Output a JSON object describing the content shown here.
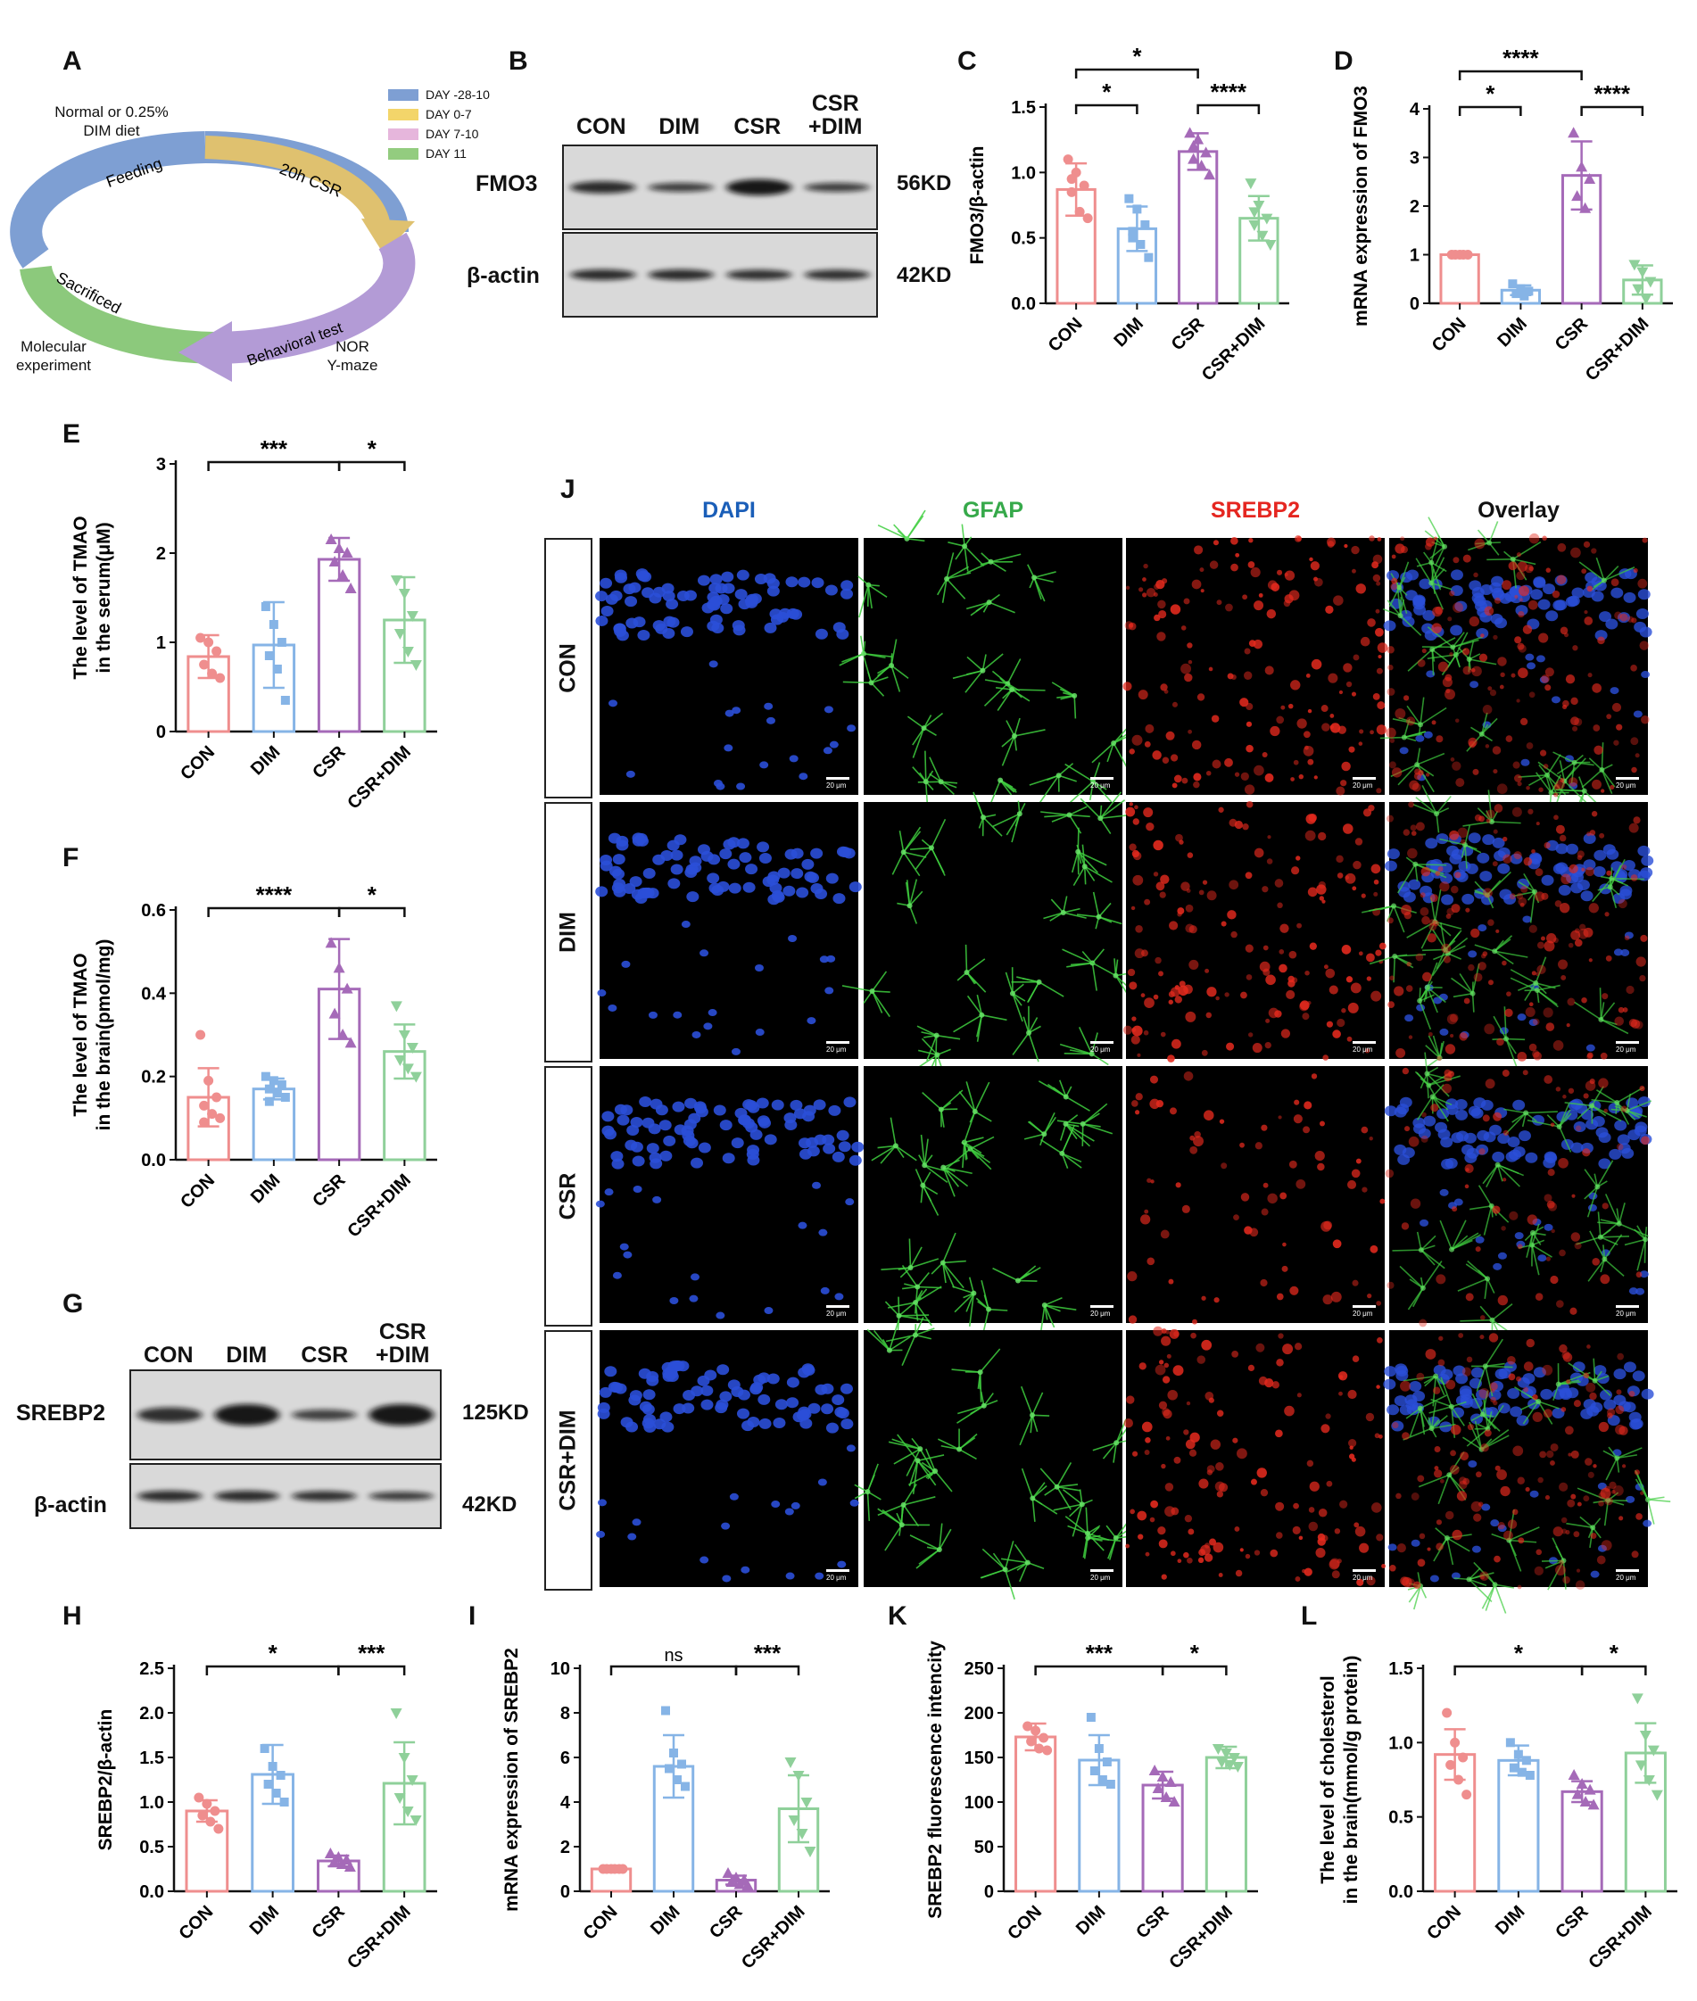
{
  "panels": {
    "A": "A",
    "B": "B",
    "C": "C",
    "D": "D",
    "E": "E",
    "F": "F",
    "G": "G",
    "H": "H",
    "I": "I",
    "J": "J",
    "K": "K",
    "L": "L"
  },
  "panelA": {
    "diet_label": "Normal or 0.25%\nDIM diet",
    "feeding": "Feeding",
    "csr": "20h CSR",
    "behavioral": "Behavioral test",
    "sacrificed": "Sacrificed",
    "molecular": "Molecular\nexperiment",
    "nor": "NOR\nY-maze",
    "legend": [
      {
        "label": "DAY -28-10",
        "color": "#7e9fd3"
      },
      {
        "label": "DAY 0-7",
        "color": "#f3d56a"
      },
      {
        "label": "DAY 7-10",
        "color": "#e6b6dc"
      },
      {
        "label": "DAY 11",
        "color": "#93cc7f"
      }
    ]
  },
  "westernB": {
    "lanes": [
      "CON",
      "DIM",
      "CSR",
      "CSR\n+DIM"
    ],
    "rows": [
      {
        "label": "FMO3",
        "kd": "56KD"
      },
      {
        "label": "β-actin",
        "kd": "42KD"
      }
    ]
  },
  "westernG": {
    "lanes": [
      "CON",
      "DIM",
      "CSR",
      "CSR\n+DIM"
    ],
    "rows": [
      {
        "label": "SREBP2",
        "kd": "125KD"
      },
      {
        "label": "β-actin",
        "kd": "42KD"
      }
    ]
  },
  "groupColors": [
    "#ef8e8e",
    "#86b4e6",
    "#a56ab8",
    "#8fd09a"
  ],
  "panelJ": {
    "channels": [
      {
        "label": "DAPI",
        "color": "#1a5eb8"
      },
      {
        "label": "GFAP",
        "color": "#36a94a"
      },
      {
        "label": "SREBP2",
        "color": "#e52620"
      },
      {
        "label": "Overlay",
        "color": "#111111"
      }
    ],
    "rows": [
      "CON",
      "DIM",
      "CSR",
      "CSR+DIM"
    ],
    "scale_bar": "20 μm"
  },
  "chart_data": [
    {
      "panel": "C",
      "type": "bar",
      "categories": [
        "CON",
        "DIM",
        "CSR",
        "CSR+DIM"
      ],
      "values": [
        0.87,
        0.57,
        1.16,
        0.65
      ],
      "errors": [
        0.2,
        0.17,
        0.14,
        0.17
      ],
      "ylabel": "FMO3/β-actin",
      "ylim": [
        0,
        1.5
      ],
      "yticks": [
        "0.0",
        "0.5",
        "1.0",
        "1.5"
      ],
      "points": [
        [
          1.1,
          1.0,
          0.9,
          0.85,
          0.7,
          0.65,
          0.95
        ],
        [
          0.8,
          0.72,
          0.6,
          0.55,
          0.45,
          0.35,
          0.5
        ],
        [
          1.3,
          1.25,
          1.15,
          1.1,
          1.05,
          0.98,
          1.2
        ],
        [
          0.92,
          0.75,
          0.65,
          0.6,
          0.52,
          0.45,
          0.7
        ]
      ],
      "sig": [
        {
          "a": 0,
          "b": 1,
          "label": "*",
          "lvl": 0
        },
        {
          "a": 2,
          "b": 3,
          "label": "****",
          "lvl": 0
        },
        {
          "a": 0,
          "b": 2,
          "label": "*",
          "lvl": 1
        }
      ]
    },
    {
      "panel": "D",
      "type": "bar",
      "categories": [
        "CON",
        "DIM",
        "CSR",
        "CSR+DIM"
      ],
      "values": [
        1.0,
        0.27,
        2.63,
        0.48
      ],
      "errors": [
        0,
        0.1,
        0.7,
        0.3
      ],
      "ylabel": "mRNA expression of FMO3",
      "ylim": [
        0,
        4
      ],
      "yticks": [
        "0",
        "1",
        "2",
        "3",
        "4"
      ],
      "points": [
        [
          1,
          1,
          1,
          1,
          1
        ],
        [
          0.4,
          0.3,
          0.25,
          0.2,
          0.15
        ],
        [
          3.5,
          2.8,
          2.55,
          2.2,
          1.95
        ],
        [
          0.8,
          0.65,
          0.45,
          0.3,
          0.1
        ]
      ],
      "sig": [
        {
          "a": 0,
          "b": 1,
          "label": "*",
          "lvl": 0
        },
        {
          "a": 2,
          "b": 3,
          "label": "****",
          "lvl": 0
        },
        {
          "a": 0,
          "b": 2,
          "label": "****",
          "lvl": 1
        }
      ]
    },
    {
      "panel": "E",
      "type": "bar",
      "categories": [
        "CON",
        "DIM",
        "CSR",
        "CSR+DIM"
      ],
      "values": [
        0.84,
        0.97,
        1.93,
        1.25
      ],
      "errors": [
        0.24,
        0.48,
        0.24,
        0.48
      ],
      "ylabel": "The level of TMAO\nin the serum(μM)",
      "ylim": [
        0,
        3
      ],
      "yticks": [
        "0",
        "1",
        "2",
        "3"
      ],
      "points": [
        [
          1.05,
          1.0,
          0.9,
          0.75,
          0.65,
          0.6
        ],
        [
          1.4,
          1.2,
          1.0,
          0.85,
          0.7,
          0.35
        ],
        [
          2.15,
          2.05,
          2.0,
          1.9,
          1.75,
          1.6
        ],
        [
          1.7,
          1.55,
          1.3,
          1.1,
          0.9,
          0.75
        ]
      ],
      "sig": [
        {
          "a": 0,
          "b": 2,
          "label": "***",
          "lvl": 0
        },
        {
          "a": 2,
          "b": 3,
          "label": "*",
          "lvl": 0
        }
      ]
    },
    {
      "panel": "F",
      "type": "bar",
      "categories": [
        "CON",
        "DIM",
        "CSR",
        "CSR+DIM"
      ],
      "values": [
        0.15,
        0.17,
        0.41,
        0.26
      ],
      "errors": [
        0.07,
        0.025,
        0.12,
        0.065
      ],
      "ylabel": "The level of TMAO\nin the brain(pmol/mg)",
      "ylim": [
        0,
        0.6
      ],
      "yticks": [
        "0.0",
        "0.2",
        "0.4",
        "0.6"
      ],
      "points": [
        [
          0.3,
          0.19,
          0.15,
          0.13,
          0.11,
          0.1,
          0.09
        ],
        [
          0.2,
          0.19,
          0.18,
          0.17,
          0.16,
          0.15,
          0.14
        ],
        [
          0.52,
          0.46,
          0.41,
          0.35,
          0.3,
          0.28
        ],
        [
          0.37,
          0.3,
          0.27,
          0.24,
          0.22,
          0.2
        ]
      ],
      "sig": [
        {
          "a": 0,
          "b": 2,
          "label": "****",
          "lvl": 0
        },
        {
          "a": 2,
          "b": 3,
          "label": "*",
          "lvl": 0
        }
      ]
    },
    {
      "panel": "H",
      "type": "bar",
      "categories": [
        "CON",
        "DIM",
        "CSR",
        "CSR+DIM"
      ],
      "values": [
        0.9,
        1.31,
        0.34,
        1.21
      ],
      "errors": [
        0.12,
        0.33,
        0.06,
        0.46
      ],
      "ylabel": "SREBP2/β-actin",
      "ylim": [
        0,
        2.5
      ],
      "yticks": [
        "0.0",
        "0.5",
        "1.0",
        "1.5",
        "2.0",
        "2.5"
      ],
      "points": [
        [
          1.05,
          0.98,
          0.9,
          0.85,
          0.78,
          0.7
        ],
        [
          1.6,
          1.4,
          1.3,
          1.2,
          1.1,
          1.0
        ],
        [
          0.42,
          0.38,
          0.35,
          0.32,
          0.3,
          0.27
        ],
        [
          2.0,
          1.5,
          1.25,
          1.05,
          0.9,
          0.8
        ]
      ],
      "sig": [
        {
          "a": 0,
          "b": 2,
          "label": "*",
          "lvl": 0
        },
        {
          "a": 2,
          "b": 3,
          "label": "***",
          "lvl": 0
        }
      ]
    },
    {
      "panel": "I",
      "type": "bar",
      "categories": [
        "CON",
        "DIM",
        "CSR",
        "CSR+DIM"
      ],
      "values": [
        1.0,
        5.6,
        0.5,
        3.7
      ],
      "errors": [
        0,
        1.4,
        0.2,
        1.5
      ],
      "ylabel": "mRNA expression of SREBP2",
      "ylim": [
        0,
        10
      ],
      "yticks": [
        "0",
        "2",
        "4",
        "6",
        "8",
        "10"
      ],
      "points": [
        [
          1,
          1,
          1,
          1,
          1,
          1
        ],
        [
          8.1,
          6.2,
          5.7,
          5.5,
          5.0,
          4.7
        ],
        [
          0.8,
          0.6,
          0.5,
          0.4,
          0.3,
          0.25
        ],
        [
          5.8,
          5.2,
          4.0,
          3.2,
          2.6,
          1.8
        ]
      ],
      "sig": [
        {
          "a": 0,
          "b": 2,
          "label": "ns",
          "lvl": 0
        },
        {
          "a": 2,
          "b": 3,
          "label": "***",
          "lvl": 0
        }
      ]
    },
    {
      "panel": "K",
      "type": "bar",
      "categories": [
        "CON",
        "DIM",
        "CSR",
        "CSR+DIM"
      ],
      "values": [
        173,
        147,
        119,
        150
      ],
      "errors": [
        15,
        28,
        15,
        12
      ],
      "ylabel": "SREBP2 fluorescence intencity",
      "ylim": [
        0,
        250
      ],
      "yticks": [
        "0",
        "50",
        "100",
        "150",
        "200",
        "250"
      ],
      "points": [
        [
          185,
          180,
          172,
          168,
          160,
          158
        ],
        [
          195,
          160,
          145,
          135,
          125,
          120
        ],
        [
          135,
          128,
          122,
          115,
          105,
          100
        ],
        [
          160,
          155,
          150,
          145,
          142,
          140
        ]
      ],
      "sig": [
        {
          "a": 0,
          "b": 2,
          "label": "***",
          "lvl": 0
        },
        {
          "a": 2,
          "b": 3,
          "label": "*",
          "lvl": 0
        }
      ]
    },
    {
      "panel": "L",
      "type": "bar",
      "categories": [
        "CON",
        "DIM",
        "CSR",
        "CSR+DIM"
      ],
      "values": [
        0.92,
        0.88,
        0.67,
        0.93
      ],
      "errors": [
        0.17,
        0.1,
        0.07,
        0.2
      ],
      "ylabel": "The level of cholesterol\nin the brain(mmol/g protein)",
      "ylim": [
        0,
        1.5
      ],
      "yticks": [
        "0.0",
        "0.5",
        "1.0",
        "1.5"
      ],
      "points": [
        [
          1.2,
          1.0,
          0.9,
          0.85,
          0.75,
          0.65
        ],
        [
          1.0,
          0.92,
          0.88,
          0.83,
          0.8,
          0.78
        ],
        [
          0.78,
          0.72,
          0.68,
          0.65,
          0.6,
          0.58
        ],
        [
          1.3,
          1.05,
          0.95,
          0.85,
          0.75,
          0.65
        ]
      ],
      "sig": [
        {
          "a": 0,
          "b": 2,
          "label": "*",
          "lvl": 0
        },
        {
          "a": 2,
          "b": 3,
          "label": "*",
          "lvl": 0
        }
      ]
    }
  ]
}
